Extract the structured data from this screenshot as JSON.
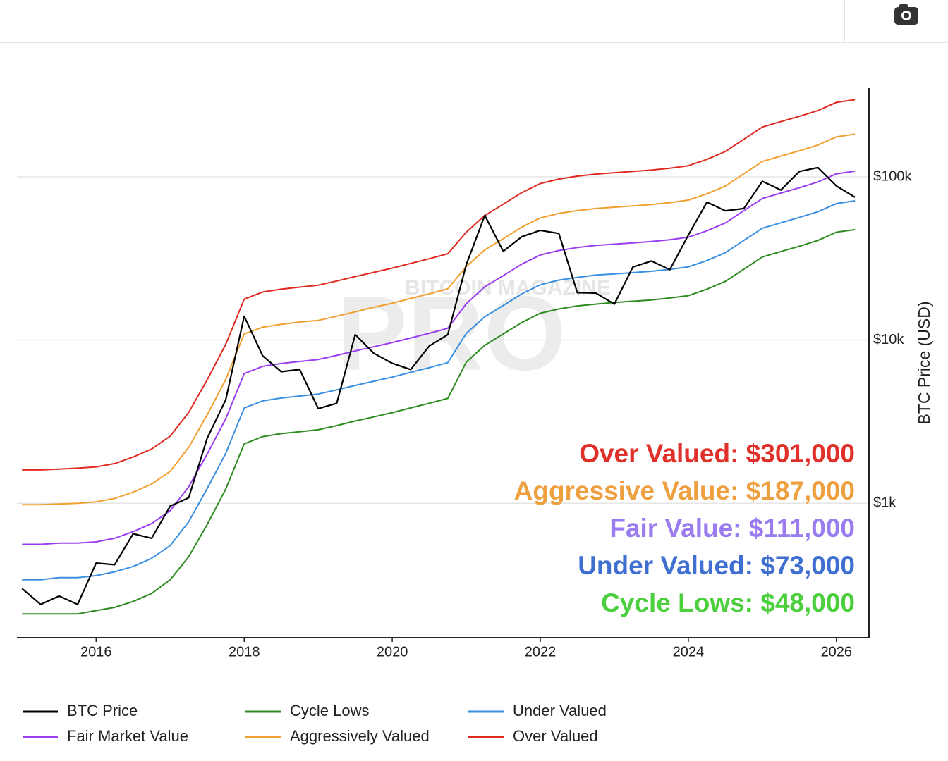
{
  "chart_data": {
    "type": "line",
    "y_label": "BTC Price (USD)",
    "watermark": [
      "BITCOIN MAGAZINE",
      "PRO"
    ],
    "log_y": true,
    "grid": true,
    "legend": "bottom",
    "xlim": [
      2014.93,
      2026.44
    ],
    "xticks": [
      2016,
      2018,
      2020,
      2022,
      2024,
      2026
    ],
    "ylim": [
      150,
      350000
    ],
    "yticks": [
      {
        "value": 1000,
        "label": "$1k"
      },
      {
        "value": 10000,
        "label": "$10k"
      },
      {
        "value": 100000,
        "label": "$100k"
      }
    ],
    "x": [
      2015,
      2015.25,
      2015.5,
      2015.75,
      2016,
      2016.25,
      2016.5,
      2016.75,
      2017,
      2017.25,
      2017.5,
      2017.75,
      2018,
      2018.25,
      2018.5,
      2018.75,
      2019,
      2019.25,
      2019.5,
      2019.75,
      2020,
      2020.25,
      2020.5,
      2020.75,
      2021,
      2021.25,
      2021.5,
      2021.75,
      2022,
      2022.25,
      2022.5,
      2022.75,
      2023,
      2023.25,
      2023.5,
      2023.75,
      2024,
      2024.25,
      2024.5,
      2024.75,
      2025,
      2025.25,
      2025.5,
      2025.75,
      2026,
      2026.25
    ],
    "series": [
      {
        "name": "BTC Price",
        "color": "#000000",
        "values": [
          300,
          240,
          270,
          240,
          430,
          420,
          650,
          610,
          960,
          1080,
          2500,
          4300,
          14000,
          8000,
          6400,
          6600,
          3800,
          4100,
          10800,
          8300,
          7200,
          6600,
          9200,
          10800,
          29000,
          58000,
          35000,
          43000,
          47000,
          45000,
          19500,
          19400,
          16600,
          28000,
          30500,
          27000,
          44000,
          70000,
          62000,
          64000,
          94000,
          83000,
          108000,
          114000,
          88000,
          75000
        ]
      },
      {
        "name": "Cycle Lows",
        "color": "#2e8b20",
        "values": [
          210,
          210,
          210,
          210,
          220,
          230,
          250,
          280,
          340,
          470,
          740,
          1220,
          2310,
          2560,
          2670,
          2740,
          2820,
          2990,
          3190,
          3380,
          3590,
          3840,
          4100,
          4390,
          7330,
          9280,
          10900,
          12800,
          14600,
          15500,
          16200,
          16600,
          17000,
          17300,
          17600,
          18100,
          18700,
          20500,
          22900,
          27200,
          32300,
          34900,
          37600,
          40800,
          45800,
          47500
        ]
      },
      {
        "name": "Under Valued",
        "color": "#3a8fe0",
        "values": [
          340,
          340,
          350,
          350,
          360,
          380,
          410,
          460,
          550,
          770,
          1230,
          2020,
          3830,
          4240,
          4410,
          4540,
          4670,
          4950,
          5270,
          5590,
          5930,
          6340,
          6770,
          7270,
          11000,
          13900,
          16300,
          19200,
          21800,
          23300,
          24200,
          25000,
          25400,
          25900,
          26400,
          27100,
          28100,
          30700,
          34300,
          40800,
          48500,
          52300,
          56400,
          61200,
          68600,
          71300
        ]
      },
      {
        "name": "Fair Market Value",
        "color": "#9b3ef0",
        "values": [
          560,
          560,
          570,
          570,
          580,
          610,
          670,
          750,
          900,
          1260,
          2000,
          3290,
          6230,
          6900,
          7180,
          7390,
          7600,
          8050,
          8580,
          9100,
          9660,
          10300,
          11000,
          11800,
          16700,
          21200,
          24800,
          29200,
          33200,
          35400,
          36900,
          38000,
          38700,
          39400,
          40200,
          41200,
          42700,
          46700,
          52200,
          62100,
          73700,
          79600,
          85800,
          93100,
          104400,
          108400
        ]
      },
      {
        "name": "Aggressively Valued",
        "color": "#f0a030",
        "values": [
          980,
          980,
          990,
          1000,
          1020,
          1070,
          1170,
          1310,
          1570,
          2200,
          3480,
          5730,
          10900,
          12000,
          12500,
          12900,
          13200,
          14000,
          14900,
          15900,
          16800,
          18000,
          19200,
          20600,
          28200,
          35700,
          41800,
          49200,
          56000,
          59700,
          62100,
          64000,
          65200,
          66400,
          67700,
          69500,
          72000,
          78700,
          87900,
          104500,
          124200,
          134100,
          144500,
          156800,
          175900,
          182700
        ]
      },
      {
        "name": "Over Valued",
        "color": "#e02a20",
        "values": [
          1600,
          1600,
          1620,
          1640,
          1670,
          1750,
          1920,
          2150,
          2580,
          3600,
          5700,
          9400,
          17800,
          19700,
          20500,
          21100,
          21700,
          23000,
          24500,
          26000,
          27600,
          29500,
          31500,
          33800,
          45800,
          58000,
          68000,
          80000,
          91000,
          97000,
          101000,
          104000,
          106000,
          108000,
          110000,
          113000,
          117000,
          128000,
          143000,
          170000,
          202000,
          218000,
          235000,
          255000,
          286000,
          297000
        ]
      }
    ],
    "annotations": [
      {
        "text": "Over Valued: $301,000",
        "color": "#e0302a"
      },
      {
        "text": "Aggressive Value: $187,000",
        "color": "#eea040"
      },
      {
        "text": "Fair Value: $111,000",
        "color": "#9a7cf0"
      },
      {
        "text": "Under Valued: $73,000",
        "color": "#3f6fd0"
      },
      {
        "text": "Cycle Lows: $48,000",
        "color": "#4ccf3c"
      }
    ]
  }
}
